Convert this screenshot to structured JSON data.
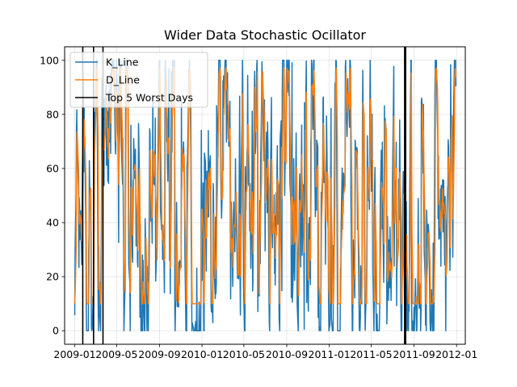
{
  "chart_data": {
    "type": "line",
    "title": "Wider Data Stochastic Ocillator",
    "xlabel": "",
    "ylabel": "",
    "x_range": [
      "2008-12-03",
      "2012-01-26"
    ],
    "ylim": [
      -5,
      105
    ],
    "grid": true,
    "legend_position": "top-left",
    "x_ticks": [
      "2009-01",
      "2009-05",
      "2009-09",
      "2010-01",
      "2010-05",
      "2010-09",
      "2011-01",
      "2011-05",
      "2011-09",
      "2012-01"
    ],
    "y_ticks": [
      0,
      20,
      40,
      60,
      80,
      100
    ],
    "data_period": [
      "2009-01-01",
      "2011-12-31"
    ],
    "series": [
      {
        "name": "K_Line",
        "color": "#1f77b4",
        "value_range": [
          0,
          100
        ],
        "sampling": "daily"
      },
      {
        "name": "D_Line",
        "color": "#ff7f0e",
        "value_range": [
          10,
          97
        ],
        "sampling": "daily"
      }
    ],
    "vertical_lines": {
      "name": "Top 5 Worst Days",
      "color": "#000000",
      "dates": [
        "2009-01-24",
        "2009-02-24",
        "2009-03-23",
        "2011-08-05",
        "2011-08-08"
      ]
    }
  }
}
